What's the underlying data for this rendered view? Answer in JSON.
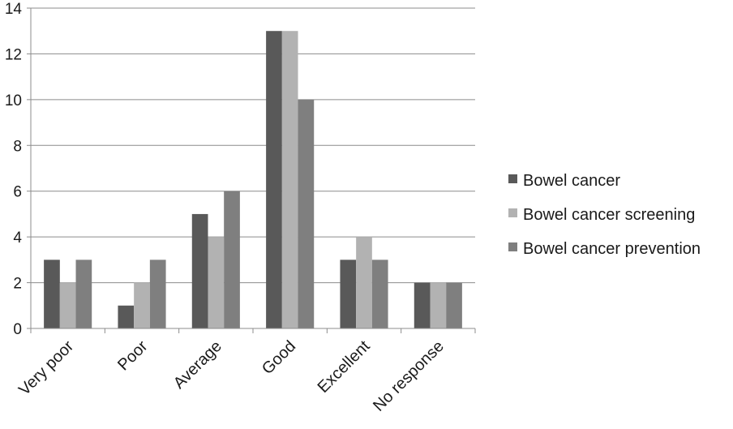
{
  "chart_data": {
    "type": "bar",
    "categories": [
      "Very poor",
      "Poor",
      "Average",
      "Good",
      "Excellent",
      "No response"
    ],
    "series": [
      {
        "name": "Bowel cancer",
        "values": [
          3,
          1,
          5,
          13,
          3,
          2
        ],
        "color": "#595959"
      },
      {
        "name": "Bowel cancer screening",
        "values": [
          2,
          2,
          4,
          13,
          4,
          2
        ],
        "color": "#b2b2b2"
      },
      {
        "name": "Bowel cancer prevention",
        "values": [
          3,
          3,
          6,
          10,
          3,
          2
        ],
        "color": "#7f7f7f"
      }
    ],
    "yticks": [
      "0",
      "2",
      "4",
      "6",
      "8",
      "10",
      "12",
      "14"
    ],
    "ylim": [
      0,
      14
    ],
    "grid": true,
    "legend_position": "right",
    "title": "",
    "xlabel": "",
    "ylabel": ""
  }
}
